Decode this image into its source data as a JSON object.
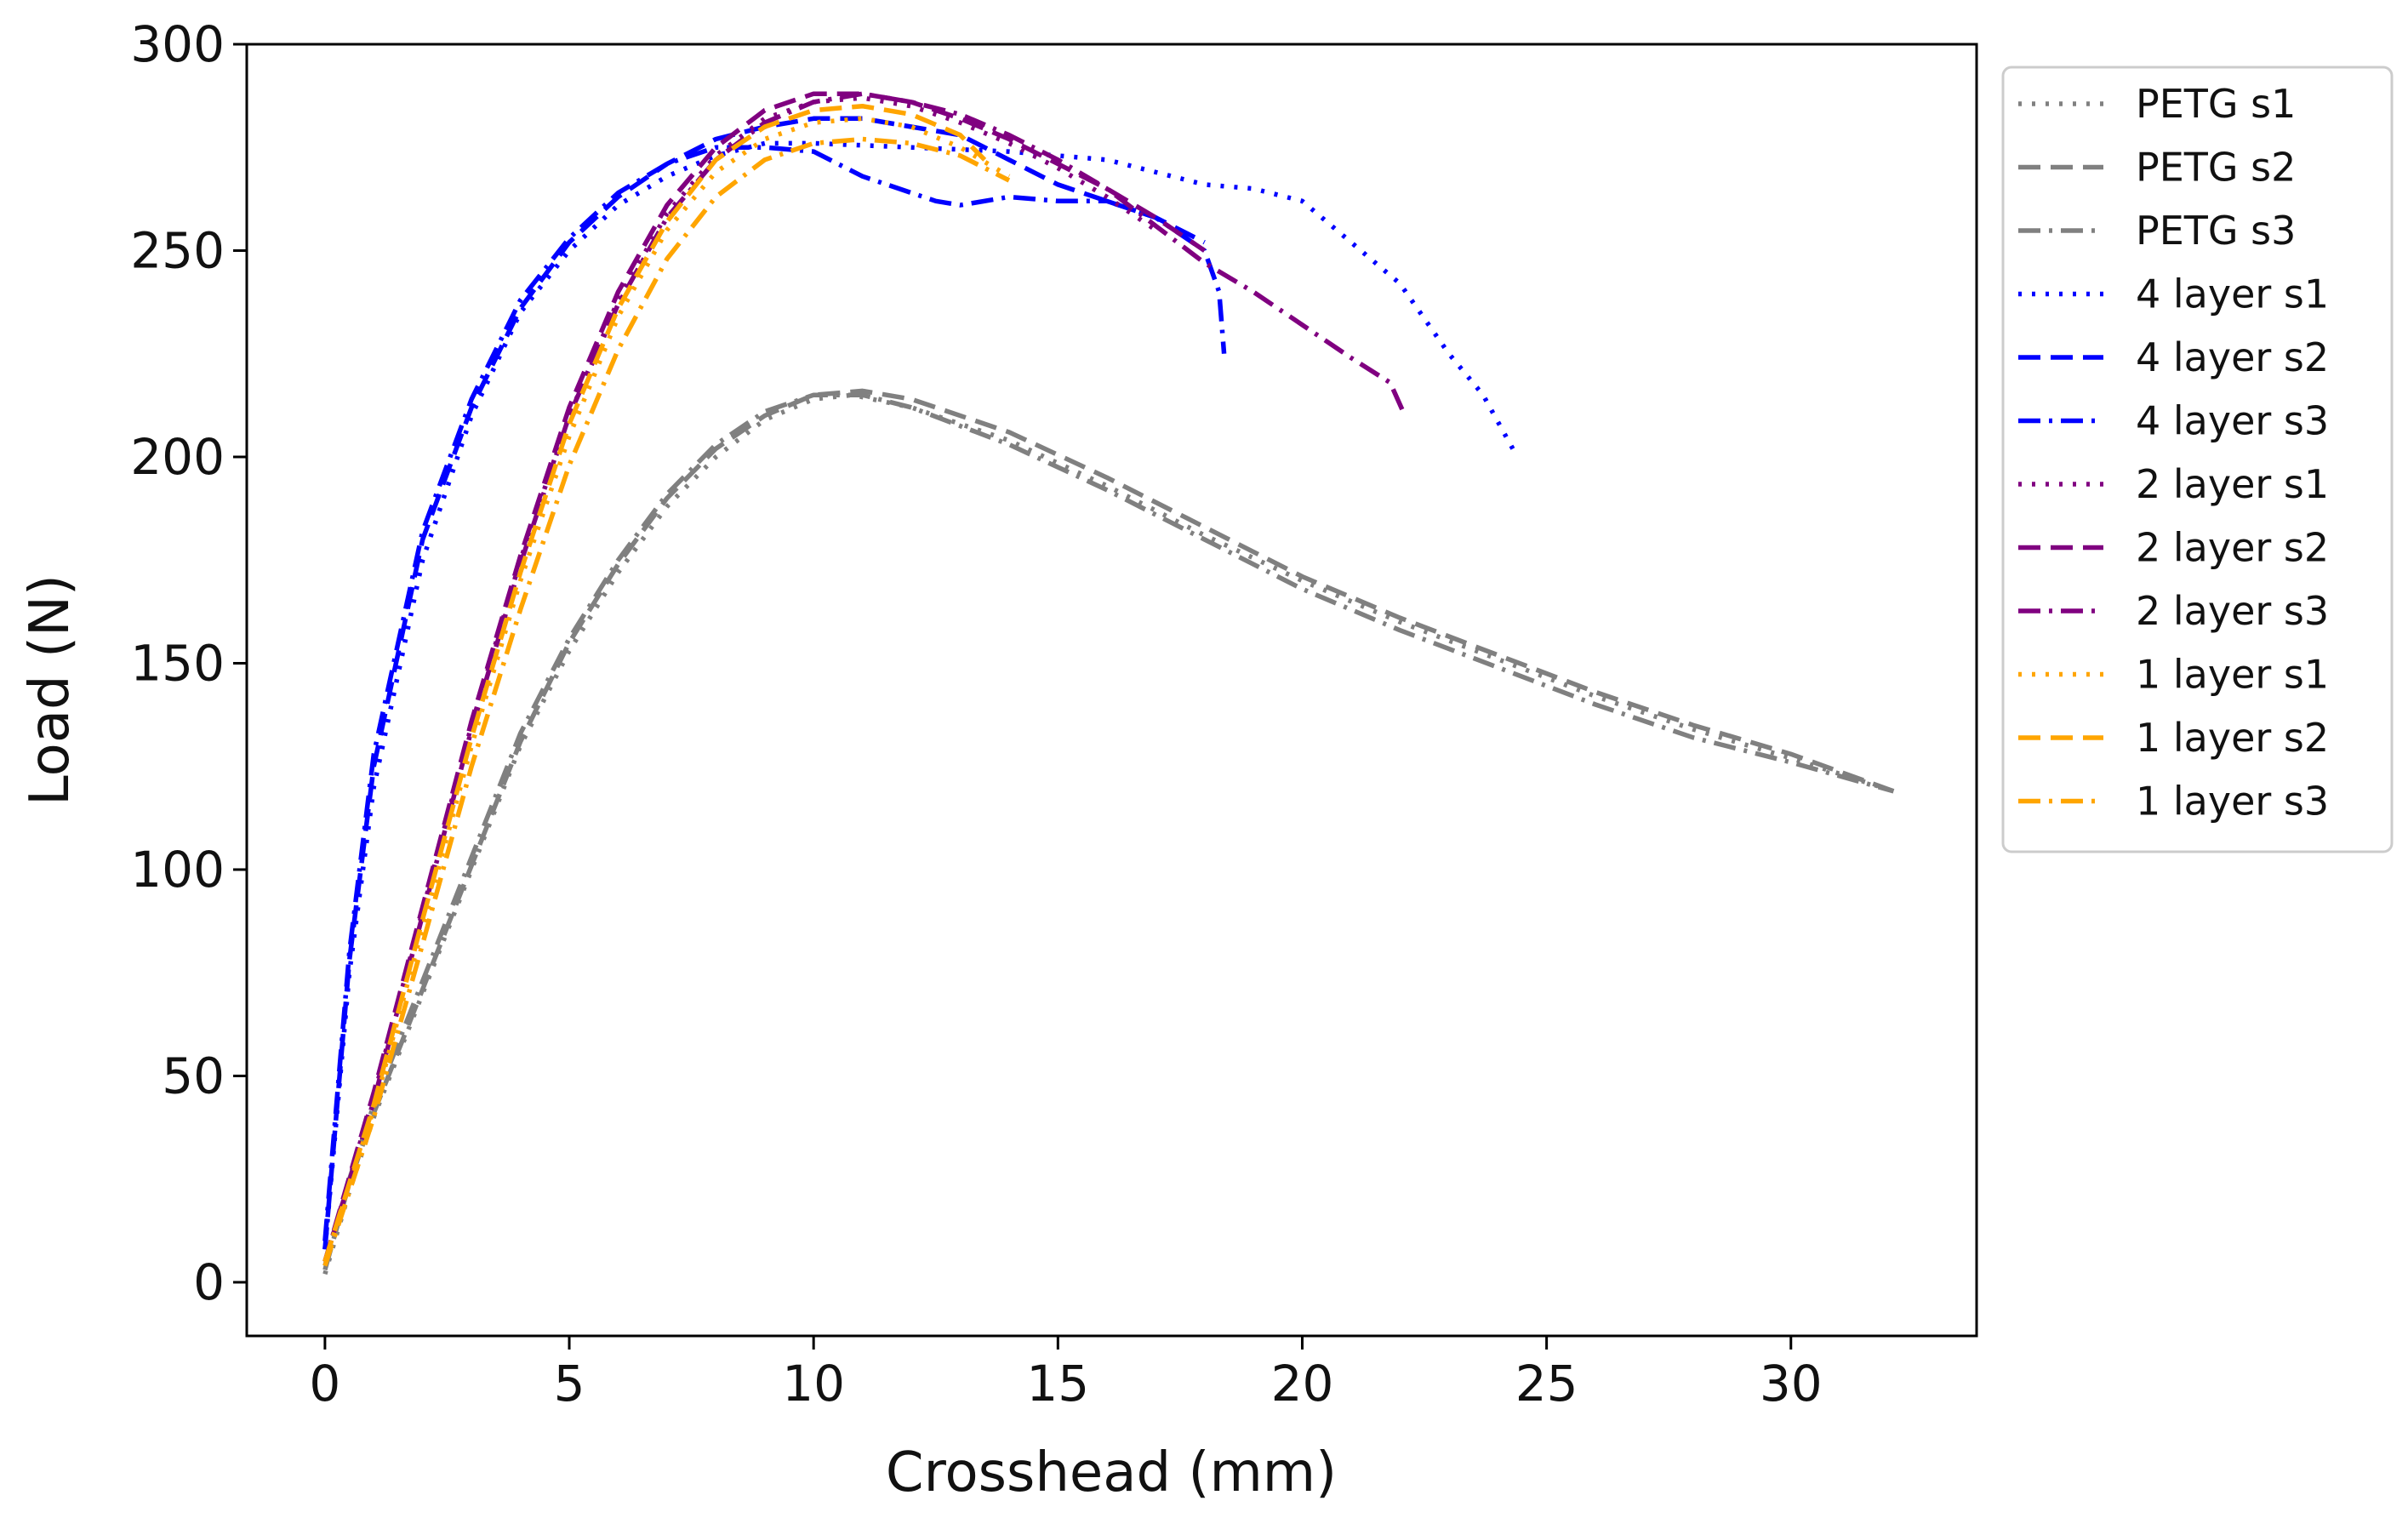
{
  "chart_data": {
    "type": "line",
    "title": "",
    "xlabel": "Crosshead (mm)",
    "ylabel": "Load (N)",
    "xlim": [
      -1.6,
      33.8
    ],
    "ylim": [
      -13,
      300
    ],
    "xticks": [
      0,
      5,
      10,
      15,
      20,
      25,
      30
    ],
    "yticks": [
      0,
      50,
      100,
      150,
      200,
      250,
      300
    ],
    "grid": false,
    "legend_position": "outside-right",
    "series": [
      {
        "name": "PETG s1",
        "color": "#808080",
        "style": "dotted",
        "x": [
          0,
          0.5,
          1,
          2,
          3,
          4,
          5,
          6,
          7,
          8,
          9,
          10,
          10.8,
          12,
          14,
          16,
          18,
          20,
          22,
          24,
          26,
          28,
          30,
          32.1
        ],
        "y": [
          2,
          22,
          40,
          70,
          100,
          130,
          153,
          172,
          188,
          200,
          209,
          214,
          215,
          212,
          204,
          193,
          181,
          170,
          160,
          151,
          142,
          134,
          127,
          119
        ]
      },
      {
        "name": "PETG s2",
        "color": "#808080",
        "style": "dashed",
        "x": [
          0,
          0.5,
          1,
          2,
          3,
          4,
          5,
          6,
          7,
          8,
          9,
          10,
          11,
          12,
          14,
          16,
          18,
          20,
          22,
          24,
          26,
          28,
          30,
          32.1
        ],
        "y": [
          3,
          24,
          41,
          71,
          101,
          131,
          155,
          174,
          190,
          202,
          210,
          215,
          216,
          214,
          206,
          195,
          183,
          171,
          161,
          152,
          143,
          135,
          128,
          119
        ]
      },
      {
        "name": "PETG s3",
        "color": "#808080",
        "style": "dashdot",
        "x": [
          0,
          0.5,
          1,
          2,
          3,
          4,
          5,
          6,
          7,
          8,
          9,
          10,
          11,
          12,
          14,
          16,
          18,
          20,
          22,
          24,
          26,
          28,
          30,
          32.1
        ],
        "y": [
          4,
          25,
          43,
          73,
          103,
          133,
          156,
          175,
          191,
          203,
          211,
          215,
          215,
          212,
          203,
          192,
          180,
          168,
          158,
          149,
          140,
          132,
          126,
          119
        ]
      },
      {
        "name": "4 layer s1",
        "color": "#0000ff",
        "style": "dotted",
        "x": [
          0,
          0.5,
          1,
          2,
          3,
          4,
          5,
          6,
          7,
          8,
          9,
          10,
          12,
          14,
          16,
          18,
          19,
          20,
          21,
          22,
          23,
          23.7,
          24.4
        ],
        "y": [
          8,
          75,
          120,
          175,
          210,
          235,
          250,
          261,
          268,
          273,
          276,
          276,
          275,
          274,
          272,
          266,
          265,
          262,
          252,
          242,
          225,
          215,
          200
        ]
      },
      {
        "name": "4 layer s2",
        "color": "#0000ff",
        "style": "dashed",
        "x": [
          0,
          0.5,
          1,
          2,
          3,
          4,
          5,
          6,
          7,
          8,
          9,
          10,
          11,
          12,
          13,
          14,
          15,
          16,
          17,
          18
        ],
        "y": [
          8,
          78,
          125,
          180,
          212,
          236,
          252,
          263,
          271,
          277,
          280,
          282,
          282,
          280,
          278,
          272,
          266,
          262,
          258,
          252
        ]
      },
      {
        "name": "4 layer s3",
        "color": "#0000ff",
        "style": "dashdot",
        "x": [
          0,
          0.5,
          1,
          2,
          3,
          4,
          5,
          6,
          7,
          8,
          9,
          10,
          11,
          12,
          12.5,
          13,
          14,
          15,
          16,
          17,
          18,
          18.3,
          18.4
        ],
        "y": [
          10,
          80,
          128,
          182,
          214,
          238,
          253,
          264,
          271,
          275,
          275,
          274,
          268,
          264,
          262,
          261,
          263,
          262,
          262,
          258,
          250,
          240,
          225
        ]
      },
      {
        "name": "2 layer  s1",
        "color": "#800080",
        "style": "dotted",
        "x": [
          0,
          1,
          2,
          3,
          4,
          5,
          6,
          7,
          8,
          9,
          10,
          11,
          12,
          13,
          14,
          15,
          16,
          17
        ],
        "y": [
          5,
          45,
          90,
          135,
          175,
          210,
          238,
          259,
          273,
          282,
          286,
          287,
          285,
          281,
          276,
          270,
          263,
          255
        ]
      },
      {
        "name": "2 layer s2",
        "color": "#800080",
        "style": "dashed",
        "x": [
          0,
          1,
          2,
          3,
          4,
          5,
          6,
          7,
          8,
          9,
          10,
          11,
          12,
          13,
          14,
          15,
          16,
          17,
          18
        ],
        "y": [
          5,
          46,
          91,
          136,
          176,
          212,
          240,
          261,
          275,
          284,
          288,
          288,
          286,
          282,
          277,
          271,
          265,
          258,
          250
        ]
      },
      {
        "name": "2 layer s3",
        "color": "#800080",
        "style": "dashdot",
        "x": [
          0,
          1,
          2,
          3,
          4,
          5,
          6,
          7,
          8,
          9,
          10,
          11,
          12,
          13,
          14,
          15,
          16,
          17,
          18,
          19,
          20,
          21,
          21.8,
          22.1
        ],
        "y": [
          5,
          44,
          89,
          134,
          174,
          210,
          237,
          258,
          272,
          281,
          286,
          288,
          286,
          283,
          278,
          272,
          265,
          256,
          247,
          240,
          232,
          224,
          218,
          210
        ]
      },
      {
        "name": "1 layer s1",
        "color": "#ffa500",
        "style": "dotted",
        "x": [
          0,
          1,
          2,
          3,
          4,
          5,
          6,
          7,
          8,
          9,
          10,
          11,
          12,
          13,
          14
        ],
        "y": [
          5,
          42,
          86,
          130,
          170,
          205,
          234,
          255,
          269,
          277,
          281,
          282,
          280,
          275,
          268
        ]
      },
      {
        "name": "1 layer s2",
        "color": "#ffa500",
        "style": "dashed",
        "x": [
          0,
          1,
          2,
          3,
          4,
          5,
          6,
          7,
          8,
          9,
          10,
          11,
          12,
          13,
          13.5
        ],
        "y": [
          5,
          43,
          88,
          132,
          172,
          208,
          236,
          257,
          272,
          280,
          284,
          285,
          283,
          278,
          272
        ]
      },
      {
        "name": "1 layer s3",
        "color": "#ffa500",
        "style": "dashdot",
        "x": [
          0,
          1,
          2,
          3,
          4,
          5,
          6,
          7,
          8,
          9,
          10,
          11,
          12,
          13,
          14
        ],
        "y": [
          4,
          40,
          82,
          125,
          163,
          198,
          226,
          248,
          263,
          272,
          276,
          277,
          276,
          273,
          267
        ]
      }
    ]
  }
}
